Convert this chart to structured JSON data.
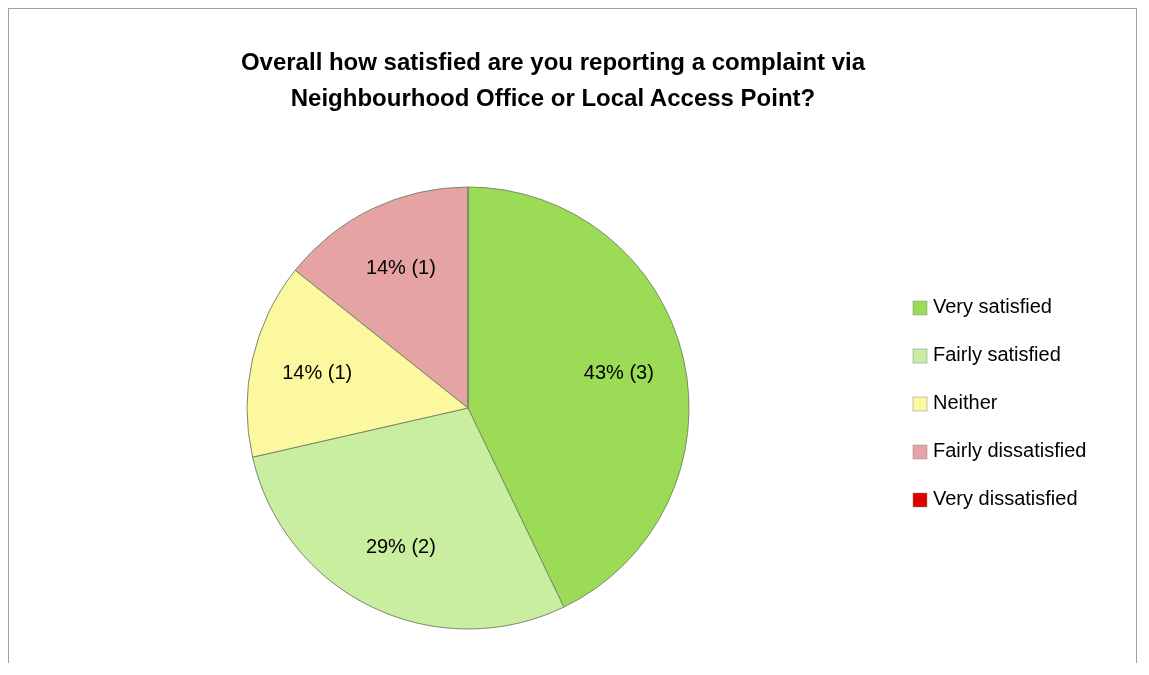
{
  "chart_data": {
    "type": "pie",
    "title": "Overall how satisfied are you reporting a complaint via\nNeighbourhood Office or Local Access Point?",
    "categories": [
      "Very satisfied",
      "Fairly satisfied",
      "Neither",
      "Fairly dissatisfied",
      "Very dissatisfied"
    ],
    "values": [
      3,
      2,
      1,
      1,
      0
    ],
    "value_labels": [
      "43% (3)",
      "29% (2)",
      "14% (1)",
      "14% (1)",
      null
    ],
    "colors": [
      "#9bdb55",
      "#c9eea0",
      "#fbf8a0",
      "#e5a3a3",
      "#e00000"
    ],
    "legend": "right"
  }
}
